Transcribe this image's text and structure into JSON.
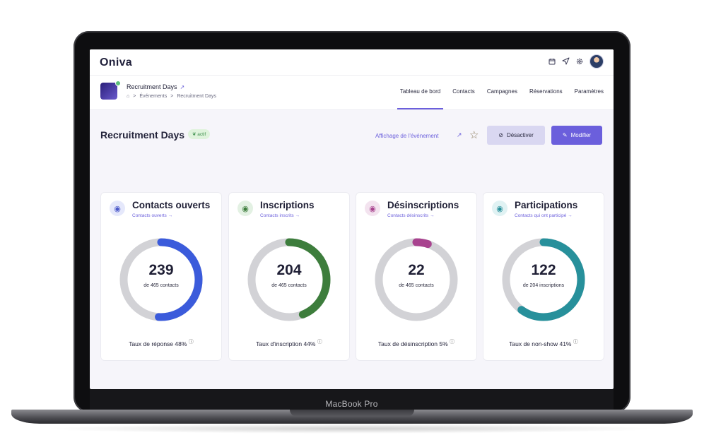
{
  "device": {
    "label": "MacBook Pro"
  },
  "app": {
    "logo": "Oniva",
    "top_icons": [
      "calendar-icon",
      "send-icon",
      "gear-icon",
      "avatar"
    ]
  },
  "event": {
    "title": "Recruitment Days",
    "status": "actif",
    "breadcrumb": [
      "Événements",
      "Recruitment Days"
    ]
  },
  "nav": {
    "tabs": [
      "Tableau de bord",
      "Contacts",
      "Campagnes",
      "Réservations",
      "Paramètres"
    ],
    "active": "Tableau de bord"
  },
  "header": {
    "page_title": "Recruitment Days",
    "badge": "actif",
    "view_link": "Affichage de l'événement",
    "deactivate_label": "Désactiver",
    "edit_label": "Modifier"
  },
  "cards": [
    {
      "title": "Contacts ouverts",
      "link": "Contacts ouverts →",
      "value": "239",
      "sub": "de 465 contacts",
      "rate": "Taux de réponse 48%",
      "progress": 0.51,
      "color": "#3b5bdb",
      "icon_bg": "#e5e8fb",
      "icon_color": "#4a58c9",
      "icon": "users-icon"
    },
    {
      "title": "Inscriptions",
      "link": "Contacts inscrits →",
      "value": "204",
      "sub": "de 465 contacts",
      "rate": "Taux d'inscription 44%",
      "progress": 0.44,
      "color": "#3d7d3c",
      "icon_bg": "#e3f1e3",
      "icon_color": "#3d7d3c",
      "icon": "user-plus-icon"
    },
    {
      "title": "Désinscriptions",
      "link": "Contacts désinscrits →",
      "value": "22",
      "sub": "de 465 contacts",
      "rate": "Taux de désinscription 5%",
      "progress": 0.05,
      "color": "#a8438f",
      "icon_bg": "#f3e3ef",
      "icon_color": "#a8438f",
      "icon": "user-minus-icon"
    },
    {
      "title": "Participations",
      "link": "Contacts qui ont participé →",
      "value": "122",
      "sub": "de 204 inscriptions",
      "rate": "Taux de non-show 41%",
      "progress": 0.6,
      "color": "#27909b",
      "icon_bg": "#e0f2f3",
      "icon_color": "#27909b",
      "icon": "user-check-icon"
    }
  ]
}
